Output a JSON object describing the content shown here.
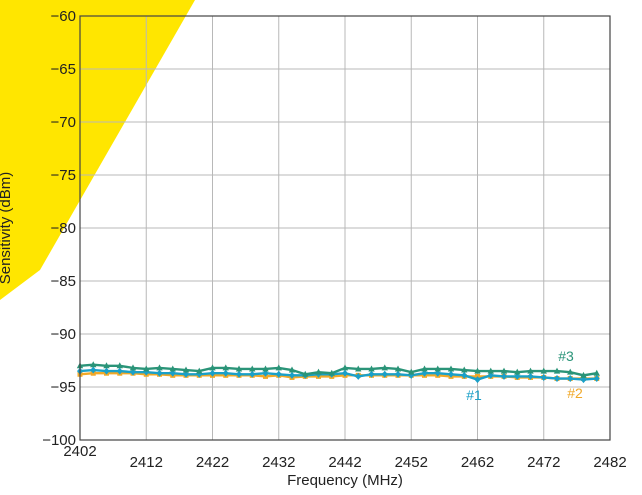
{
  "chart_data": {
    "type": "line",
    "xlabel": "Frequency (MHz)",
    "ylabel": "Sensitivity (dBm)",
    "xlim": [
      2402,
      2482
    ],
    "ylim": [
      -100,
      -60
    ],
    "xticks": [
      "2402",
      "2412",
      "2422",
      "2432",
      "2442",
      "2452",
      "2462",
      "2472",
      "2482"
    ],
    "yticks": [
      "−60",
      "−65",
      "−70",
      "−75",
      "−80",
      "−85",
      "−90",
      "−95",
      "−100"
    ],
    "grid": true,
    "x": [
      2402,
      2404,
      2406,
      2408,
      2410,
      2412,
      2414,
      2416,
      2418,
      2420,
      2422,
      2424,
      2426,
      2428,
      2430,
      2432,
      2434,
      2436,
      2438,
      2440,
      2442,
      2444,
      2446,
      2448,
      2450,
      2452,
      2454,
      2456,
      2458,
      2460,
      2462,
      2464,
      2466,
      2468,
      2470,
      2472,
      2474,
      2476,
      2478,
      2480
    ],
    "series": [
      {
        "name": "#1",
        "color": "#1aa0c8",
        "marker": "diamond",
        "values": [
          -93.5,
          -93.4,
          -93.5,
          -93.5,
          -93.6,
          -93.6,
          -93.7,
          -93.7,
          -93.8,
          -93.8,
          -93.7,
          -93.7,
          -93.8,
          -93.8,
          -93.7,
          -93.8,
          -93.9,
          -93.9,
          -93.8,
          -93.8,
          -93.7,
          -94.0,
          -93.8,
          -93.8,
          -93.8,
          -93.9,
          -93.7,
          -93.7,
          -93.8,
          -93.9,
          -94.3,
          -93.9,
          -94.0,
          -94.0,
          -94.0,
          -94.1,
          -94.2,
          -94.2,
          -94.3,
          -94.2
        ]
      },
      {
        "name": "#2",
        "color": "#f0a828",
        "marker": "square",
        "values": [
          -93.8,
          -93.7,
          -93.7,
          -93.7,
          -93.7,
          -93.8,
          -93.8,
          -93.9,
          -93.9,
          -93.9,
          -93.9,
          -93.9,
          -93.9,
          -93.9,
          -94.0,
          -93.9,
          -94.1,
          -94.0,
          -94.0,
          -94.0,
          -93.9,
          -93.9,
          -93.9,
          -93.9,
          -93.9,
          -93.9,
          -93.9,
          -93.9,
          -94.0,
          -94.0,
          -94.0,
          -94.0,
          -94.0,
          -94.1,
          -94.1,
          -94.1,
          -94.2,
          -94.2,
          -94.2,
          -94.2
        ]
      },
      {
        "name": "#3",
        "color": "#2a9478",
        "marker": "triangle",
        "values": [
          -93.0,
          -92.9,
          -93.0,
          -93.0,
          -93.2,
          -93.3,
          -93.2,
          -93.3,
          -93.4,
          -93.5,
          -93.2,
          -93.2,
          -93.3,
          -93.3,
          -93.3,
          -93.2,
          -93.4,
          -93.8,
          -93.6,
          -93.7,
          -93.2,
          -93.3,
          -93.3,
          -93.2,
          -93.3,
          -93.6,
          -93.3,
          -93.3,
          -93.3,
          -93.4,
          -93.5,
          -93.5,
          -93.5,
          -93.6,
          -93.5,
          -93.5,
          -93.5,
          -93.6,
          -93.9,
          -93.7
        ]
      }
    ],
    "watermark_color": "#ffe600"
  }
}
